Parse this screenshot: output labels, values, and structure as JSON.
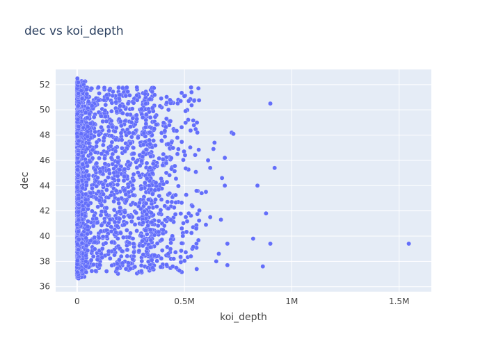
{
  "chart_data": {
    "type": "scatter",
    "title": "dec vs koi_depth",
    "xlabel": "koi_depth",
    "ylabel": "dec",
    "xlim": [
      -100000,
      1650000
    ],
    "ylim": [
      35.6,
      53.2
    ],
    "x_ticks": [
      {
        "value": 0,
        "label": "0"
      },
      {
        "value": 500000,
        "label": "0.5M"
      },
      {
        "value": 1000000,
        "label": "1M"
      },
      {
        "value": 1500000,
        "label": "1.5M"
      }
    ],
    "y_ticks": [
      {
        "value": 36,
        "label": "36"
      },
      {
        "value": 38,
        "label": "38"
      },
      {
        "value": 40,
        "label": "40"
      },
      {
        "value": 42,
        "label": "42"
      },
      {
        "value": 44,
        "label": "44"
      },
      {
        "value": 46,
        "label": "46"
      },
      {
        "value": 48,
        "label": "48"
      },
      {
        "value": 50,
        "label": "50"
      },
      {
        "value": 52,
        "label": "52"
      }
    ],
    "grid": true,
    "colors": {
      "plot_bg": "#e5ecf6",
      "grid": "#ffffff",
      "marker": "#636efa",
      "text": "#444444",
      "title": "#2a3f5f"
    },
    "series": [
      {
        "points": [
          [
            900000,
            50.5
          ],
          [
            920000,
            45.4
          ],
          [
            840000,
            44.0
          ],
          [
            880000,
            41.8
          ],
          [
            820000,
            39.8
          ],
          [
            900000,
            39.4
          ],
          [
            865000,
            37.6
          ],
          [
            1545000,
            39.4
          ],
          [
            700000,
            37.7
          ],
          [
            648000,
            38.0
          ],
          [
            700000,
            39.4
          ],
          [
            688000,
            46.2
          ],
          [
            720000,
            48.2
          ],
          [
            728000,
            48.1
          ],
          [
            640000,
            47.4
          ],
          [
            635000,
            46.9
          ],
          [
            610000,
            46.0
          ],
          [
            600000,
            43.5
          ],
          [
            580000,
            43.4
          ],
          [
            560000,
            48.2
          ],
          [
            520000,
            50.7
          ],
          [
            505000,
            49.9
          ],
          [
            620000,
            45.4
          ],
          [
            670000,
            41.3
          ],
          [
            675000,
            44.6
          ],
          [
            688000,
            44.0
          ],
          [
            660000,
            38.6
          ],
          [
            600000,
            40.9
          ],
          [
            555000,
            40.6
          ],
          [
            520000,
            41.8
          ],
          [
            530000,
            38.4
          ],
          [
            620000,
            41.5
          ]
        ]
      }
    ]
  }
}
